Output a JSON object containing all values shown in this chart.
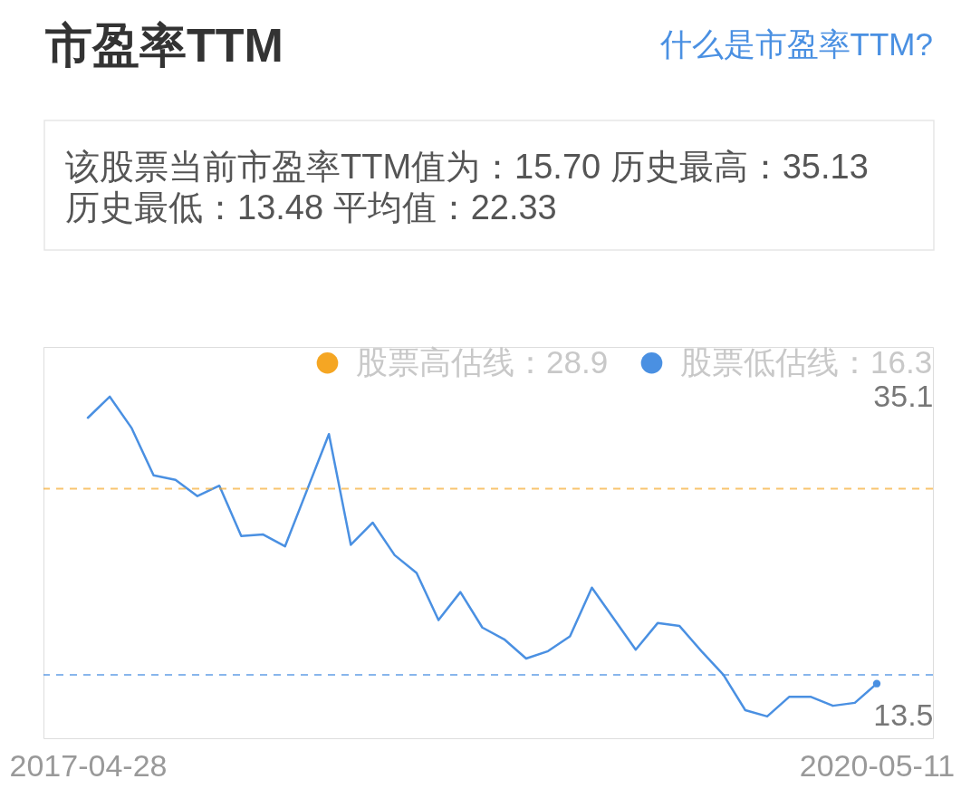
{
  "chart_data": {
    "type": "line",
    "title": "市盈率TTM",
    "subtitle": "该股票当前市盈率TTM值为：15.70 历史最高：35.13\n历史最低：13.48 平均值：22.33",
    "categories": [
      "2017-04-28",
      null,
      null,
      null,
      null,
      null,
      null,
      null,
      null,
      null,
      null,
      null,
      null,
      null,
      null,
      null,
      null,
      null,
      null,
      null,
      null,
      null,
      null,
      null,
      null,
      null,
      null,
      null,
      null,
      null,
      null,
      null,
      null,
      null,
      null,
      null,
      "2020-05-11"
    ],
    "series": [
      {
        "color": "#4a90e2",
        "values": [
          33.7,
          35.13,
          33.0,
          29.8,
          29.5,
          28.4,
          29.1,
          25.7,
          25.8,
          25.0,
          28.8,
          32.6,
          25.1,
          26.6,
          24.4,
          23.2,
          20.0,
          21.9,
          19.5,
          18.7,
          17.4,
          17.9,
          18.9,
          22.2,
          20.1,
          18.0,
          19.8,
          19.6,
          17.9,
          16.3,
          13.9,
          13.48,
          14.8,
          14.8,
          14.2,
          14.4,
          15.7
        ]
      },
      {
        "type": "scatter",
        "color": "#4a90e2",
        "values": [
          null,
          null,
          null,
          null,
          null,
          null,
          null,
          null,
          null,
          null,
          null,
          null,
          null,
          null,
          null,
          null,
          null,
          null,
          null,
          null,
          null,
          null,
          null,
          null,
          null,
          null,
          null,
          null,
          null,
          null,
          null,
          null,
          null,
          null,
          null,
          null,
          15.7
        ]
      }
    ],
    "ref_lines": [
      {
        "axis": "y",
        "value": 28.9,
        "label": "股票高估线：28.9",
        "color": "#f5a623",
        "line_style": "dashed"
      },
      {
        "axis": "y",
        "value": 16.3,
        "label": "股票低估线：16.3",
        "color": "#4a90e2",
        "line_style": "dashed"
      }
    ],
    "annotations": [
      "什么是市盈率TTM?"
    ],
    "ylim": [
      12,
      38.5
    ],
    "yticks": [
      13.5,
      35.1
    ],
    "legend": "top right"
  }
}
